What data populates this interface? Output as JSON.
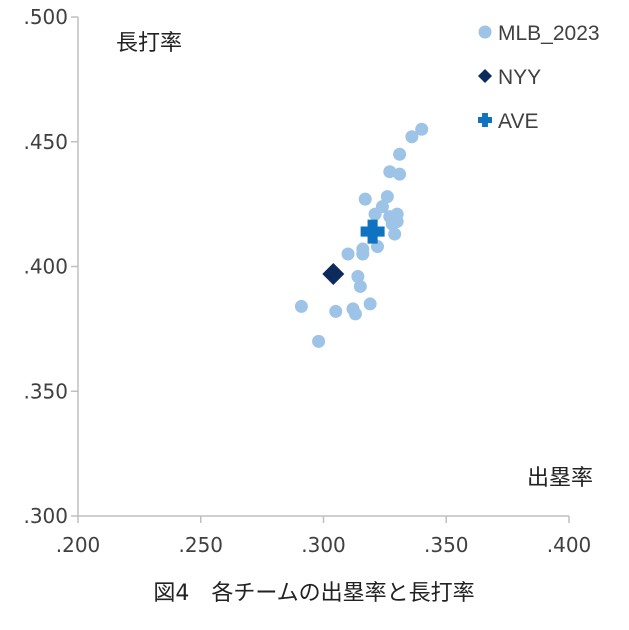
{
  "chart_data": {
    "type": "scatter",
    "caption": "図4　各チームの出塁率と長打率",
    "xlabel": "出塁率",
    "ylabel": "長打率",
    "xlim": [
      0.2,
      0.4
    ],
    "ylim": [
      0.3,
      0.5
    ],
    "x_ticks": [
      ".200",
      ".250",
      ".300",
      ".350",
      ".400"
    ],
    "y_ticks": [
      ".300",
      ".350",
      ".400",
      ".450",
      ".500"
    ],
    "grid": false,
    "legend_position": "top-right",
    "series": [
      {
        "name": "MLB_2023",
        "marker": "circle",
        "color": "#9dc3e6",
        "points": [
          {
            "x": 0.291,
            "y": 0.384
          },
          {
            "x": 0.298,
            "y": 0.37
          },
          {
            "x": 0.305,
            "y": 0.382
          },
          {
            "x": 0.31,
            "y": 0.405
          },
          {
            "x": 0.312,
            "y": 0.383
          },
          {
            "x": 0.313,
            "y": 0.381
          },
          {
            "x": 0.314,
            "y": 0.396
          },
          {
            "x": 0.315,
            "y": 0.392
          },
          {
            "x": 0.316,
            "y": 0.405
          },
          {
            "x": 0.316,
            "y": 0.407
          },
          {
            "x": 0.317,
            "y": 0.427
          },
          {
            "x": 0.319,
            "y": 0.385
          },
          {
            "x": 0.321,
            "y": 0.421
          },
          {
            "x": 0.322,
            "y": 0.408
          },
          {
            "x": 0.324,
            "y": 0.424
          },
          {
            "x": 0.326,
            "y": 0.428
          },
          {
            "x": 0.327,
            "y": 0.438
          },
          {
            "x": 0.327,
            "y": 0.42
          },
          {
            "x": 0.328,
            "y": 0.417
          },
          {
            "x": 0.329,
            "y": 0.413
          },
          {
            "x": 0.33,
            "y": 0.418
          },
          {
            "x": 0.33,
            "y": 0.421
          },
          {
            "x": 0.331,
            "y": 0.437
          },
          {
            "x": 0.331,
            "y": 0.445
          },
          {
            "x": 0.336,
            "y": 0.452
          },
          {
            "x": 0.34,
            "y": 0.455
          }
        ]
      },
      {
        "name": "NYY",
        "marker": "diamond",
        "color": "#0d2a5c",
        "points": [
          {
            "x": 0.304,
            "y": 0.397
          }
        ]
      },
      {
        "name": "AVE",
        "marker": "cross",
        "color": "#0f73c0",
        "points": [
          {
            "x": 0.32,
            "y": 0.414
          }
        ]
      }
    ]
  }
}
